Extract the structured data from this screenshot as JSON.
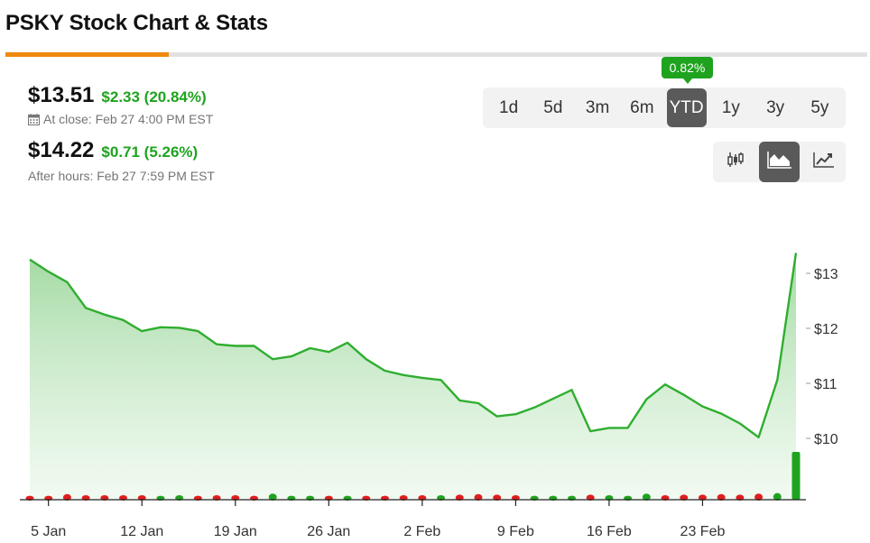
{
  "page": {
    "title": "PSKY Stock Chart & Stats"
  },
  "quote": {
    "close_price": "$13.51",
    "close_change": "$2.33 (20.84%)",
    "close_time": "At close: Feb 27 4:00 PM EST",
    "after_price": "$14.22",
    "after_change": "$0.71 (5.26%)",
    "after_time": "After hours: Feb 27 7:59 PM EST"
  },
  "ranges": {
    "badge": "0.82%",
    "items": [
      {
        "label": "1d",
        "active": false
      },
      {
        "label": "5d",
        "active": false
      },
      {
        "label": "3m",
        "active": false
      },
      {
        "label": "6m",
        "active": false
      },
      {
        "label": "YTD",
        "active": true
      },
      {
        "label": "1y",
        "active": false
      },
      {
        "label": "3y",
        "active": false
      },
      {
        "label": "5y",
        "active": false
      }
    ]
  },
  "chart_types": [
    {
      "icon": "candlestick-icon",
      "active": false
    },
    {
      "icon": "area-chart-icon",
      "active": true
    },
    {
      "icon": "line-chart-icon",
      "active": false
    }
  ],
  "colors": {
    "accent": "#ef8a0c",
    "up": "#1fa31f",
    "down": "#e01e1e",
    "line": "#2fae2f",
    "active_button": "#5a5a5a"
  },
  "chart_data": {
    "type": "area",
    "title": "",
    "xlabel": "",
    "ylabel": "",
    "ylim": [
      9.0,
      13.6
    ],
    "y_ticks": [
      "$13",
      "$12",
      "$11",
      "$10"
    ],
    "y_tick_values": [
      13,
      12,
      11,
      10
    ],
    "x_ticks": [
      "5 Jan",
      "12 Jan",
      "19 Jan",
      "26 Jan",
      "2 Feb",
      "9 Feb",
      "16 Feb",
      "23 Feb"
    ],
    "x_tick_day_index": [
      1,
      6,
      11,
      16,
      21,
      26,
      31,
      36
    ],
    "series": [
      {
        "values": [
          13.25,
          13.03,
          12.84,
          12.37,
          12.25,
          12.15,
          11.95,
          12.02,
          12.01,
          11.95,
          11.71,
          11.68,
          11.68,
          11.44,
          11.49,
          11.64,
          11.57,
          11.74,
          11.44,
          11.23,
          11.15,
          11.1,
          11.06,
          10.69,
          10.64,
          10.4,
          10.44,
          10.56,
          10.72,
          10.88,
          10.13,
          10.19,
          10.19,
          10.71,
          10.98,
          10.79,
          10.58,
          10.45,
          10.27,
          10.02,
          11.06,
          13.37
        ]
      }
    ],
    "volume": {
      "direction": [
        "down",
        "down",
        "down",
        "down",
        "down",
        "down",
        "down",
        "up",
        "up",
        "down",
        "down",
        "down",
        "down",
        "up",
        "up",
        "up",
        "down",
        "up",
        "down",
        "down",
        "down",
        "down",
        "up",
        "down",
        "down",
        "down",
        "down",
        "up",
        "up",
        "up",
        "down",
        "up",
        "up",
        "up",
        "down",
        "down",
        "down",
        "down",
        "down",
        "down",
        "up",
        "up"
      ],
      "level": [
        0.2,
        0.2,
        0.35,
        0.25,
        0.25,
        0.25,
        0.25,
        0.2,
        0.25,
        0.2,
        0.25,
        0.25,
        0.2,
        0.4,
        0.2,
        0.2,
        0.2,
        0.2,
        0.2,
        0.2,
        0.25,
        0.25,
        0.25,
        0.3,
        0.35,
        0.3,
        0.25,
        0.2,
        0.2,
        0.2,
        0.3,
        0.25,
        0.2,
        0.4,
        0.25,
        0.3,
        0.3,
        0.35,
        0.3,
        0.4,
        0.45,
        1.0
      ]
    }
  }
}
